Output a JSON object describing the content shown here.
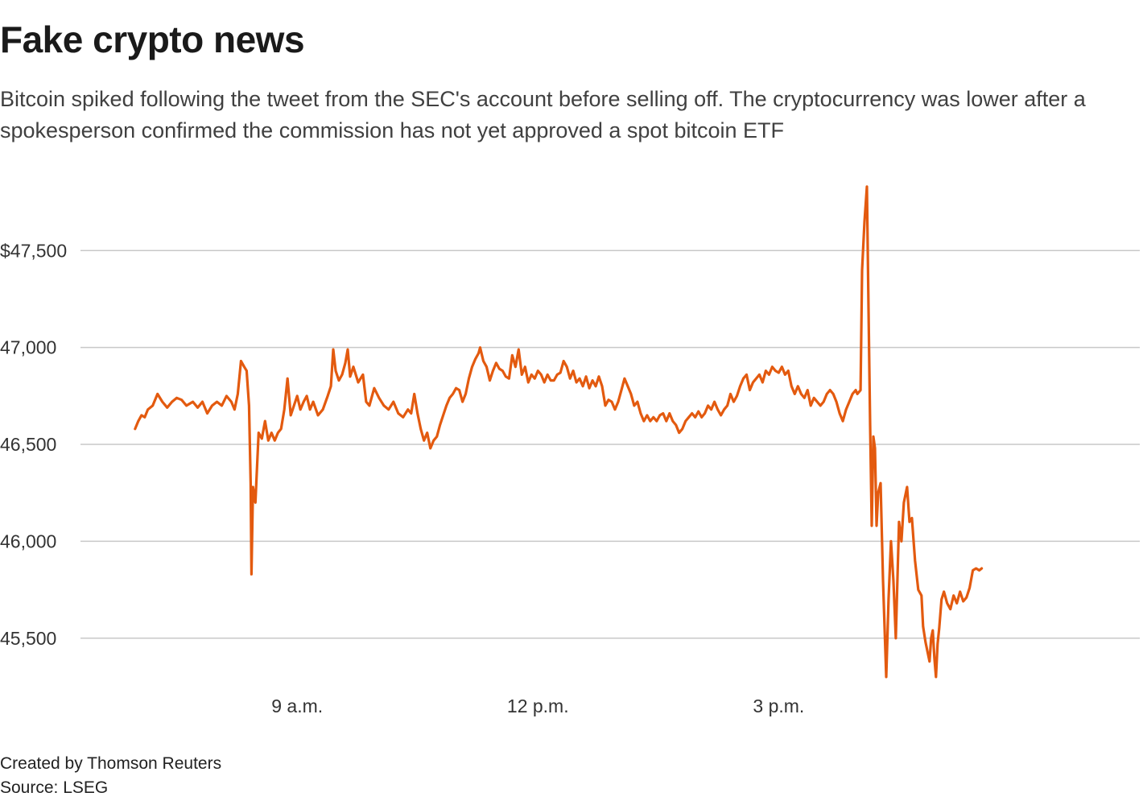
{
  "header": {
    "title": "Fake crypto news",
    "subtitle": "Bitcoin spiked following the tweet from the SEC's account before selling off. The cryptocurrency was lower after a spokesperson confirmed the commission has not yet approved a spot bitcoin ETF"
  },
  "footer": {
    "credit": "Created by Thomson Reuters",
    "source": "Source: LSEG"
  },
  "chart_data": {
    "type": "line",
    "title": "Fake crypto news",
    "xlabel": "",
    "ylabel": "",
    "line_color": "#e35a0f",
    "grid_color": "#c8c8c8",
    "grid": true,
    "legend": "none",
    "xlim": [
      6.3,
      19.5
    ],
    "ylim": [
      45200,
      47900
    ],
    "x_ticks": [
      {
        "value": 9,
        "label": "9 a.m."
      },
      {
        "value": 12,
        "label": "12 p.m."
      },
      {
        "value": 15,
        "label": "3 p.m."
      }
    ],
    "y_ticks": [
      {
        "value": 45500,
        "label": "45,500"
      },
      {
        "value": 46000,
        "label": "46,000"
      },
      {
        "value": 46500,
        "label": "46,500"
      },
      {
        "value": 47000,
        "label": "47,000"
      },
      {
        "value": 47500,
        "label": "$47,500"
      }
    ],
    "series": [
      {
        "values": [
          [
            6.98,
            46580
          ],
          [
            7.02,
            46620
          ],
          [
            7.06,
            46650
          ],
          [
            7.1,
            46640
          ],
          [
            7.14,
            46680
          ],
          [
            7.2,
            46700
          ],
          [
            7.26,
            46760
          ],
          [
            7.32,
            46720
          ],
          [
            7.38,
            46690
          ],
          [
            7.44,
            46720
          ],
          [
            7.5,
            46740
          ],
          [
            7.56,
            46730
          ],
          [
            7.62,
            46700
          ],
          [
            7.7,
            46720
          ],
          [
            7.76,
            46690
          ],
          [
            7.82,
            46720
          ],
          [
            7.88,
            46660
          ],
          [
            7.94,
            46700
          ],
          [
            8.0,
            46720
          ],
          [
            8.06,
            46700
          ],
          [
            8.12,
            46750
          ],
          [
            8.18,
            46720
          ],
          [
            8.22,
            46680
          ],
          [
            8.26,
            46760
          ],
          [
            8.3,
            46930
          ],
          [
            8.34,
            46900
          ],
          [
            8.37,
            46880
          ],
          [
            8.4,
            46700
          ],
          [
            8.42,
            46300
          ],
          [
            8.43,
            45830
          ],
          [
            8.45,
            46280
          ],
          [
            8.48,
            46200
          ],
          [
            8.52,
            46560
          ],
          [
            8.56,
            46530
          ],
          [
            8.6,
            46620
          ],
          [
            8.64,
            46520
          ],
          [
            8.68,
            46560
          ],
          [
            8.72,
            46520
          ],
          [
            8.76,
            46560
          ],
          [
            8.8,
            46580
          ],
          [
            8.84,
            46680
          ],
          [
            8.88,
            46840
          ],
          [
            8.92,
            46650
          ],
          [
            8.96,
            46700
          ],
          [
            9.0,
            46750
          ],
          [
            9.04,
            46680
          ],
          [
            9.08,
            46720
          ],
          [
            9.12,
            46750
          ],
          [
            9.16,
            46680
          ],
          [
            9.2,
            46720
          ],
          [
            9.26,
            46650
          ],
          [
            9.32,
            46680
          ],
          [
            9.38,
            46750
          ],
          [
            9.42,
            46800
          ],
          [
            9.45,
            46990
          ],
          [
            9.48,
            46880
          ],
          [
            9.52,
            46830
          ],
          [
            9.56,
            46860
          ],
          [
            9.6,
            46920
          ],
          [
            9.63,
            46990
          ],
          [
            9.66,
            46850
          ],
          [
            9.7,
            46900
          ],
          [
            9.76,
            46820
          ],
          [
            9.82,
            46860
          ],
          [
            9.86,
            46720
          ],
          [
            9.9,
            46700
          ],
          [
            9.96,
            46790
          ],
          [
            10.02,
            46740
          ],
          [
            10.08,
            46700
          ],
          [
            10.14,
            46680
          ],
          [
            10.2,
            46720
          ],
          [
            10.26,
            46660
          ],
          [
            10.32,
            46640
          ],
          [
            10.38,
            46680
          ],
          [
            10.42,
            46660
          ],
          [
            10.46,
            46760
          ],
          [
            10.5,
            46660
          ],
          [
            10.54,
            46580
          ],
          [
            10.58,
            46520
          ],
          [
            10.62,
            46560
          ],
          [
            10.66,
            46480
          ],
          [
            10.7,
            46520
          ],
          [
            10.74,
            46540
          ],
          [
            10.78,
            46600
          ],
          [
            10.82,
            46650
          ],
          [
            10.86,
            46700
          ],
          [
            10.9,
            46740
          ],
          [
            10.94,
            46760
          ],
          [
            10.98,
            46790
          ],
          [
            11.02,
            46780
          ],
          [
            11.06,
            46720
          ],
          [
            11.1,
            46760
          ],
          [
            11.14,
            46840
          ],
          [
            11.18,
            46900
          ],
          [
            11.22,
            46940
          ],
          [
            11.26,
            46970
          ],
          [
            11.28,
            47000
          ],
          [
            11.32,
            46930
          ],
          [
            11.36,
            46900
          ],
          [
            11.4,
            46830
          ],
          [
            11.44,
            46880
          ],
          [
            11.48,
            46920
          ],
          [
            11.52,
            46890
          ],
          [
            11.56,
            46880
          ],
          [
            11.6,
            46850
          ],
          [
            11.64,
            46840
          ],
          [
            11.68,
            46960
          ],
          [
            11.72,
            46900
          ],
          [
            11.76,
            46990
          ],
          [
            11.8,
            46860
          ],
          [
            11.84,
            46900
          ],
          [
            11.88,
            46820
          ],
          [
            11.92,
            46860
          ],
          [
            11.96,
            46840
          ],
          [
            12.0,
            46880
          ],
          [
            12.04,
            46860
          ],
          [
            12.08,
            46820
          ],
          [
            12.12,
            46860
          ],
          [
            12.16,
            46830
          ],
          [
            12.2,
            46830
          ],
          [
            12.24,
            46860
          ],
          [
            12.28,
            46870
          ],
          [
            12.32,
            46930
          ],
          [
            12.36,
            46900
          ],
          [
            12.4,
            46840
          ],
          [
            12.44,
            46880
          ],
          [
            12.48,
            46820
          ],
          [
            12.52,
            46840
          ],
          [
            12.56,
            46800
          ],
          [
            12.6,
            46850
          ],
          [
            12.64,
            46790
          ],
          [
            12.68,
            46830
          ],
          [
            12.72,
            46800
          ],
          [
            12.76,
            46850
          ],
          [
            12.8,
            46800
          ],
          [
            12.84,
            46700
          ],
          [
            12.88,
            46730
          ],
          [
            12.92,
            46720
          ],
          [
            12.96,
            46680
          ],
          [
            13.0,
            46720
          ],
          [
            13.04,
            46780
          ],
          [
            13.08,
            46840
          ],
          [
            13.12,
            46800
          ],
          [
            13.16,
            46760
          ],
          [
            13.2,
            46700
          ],
          [
            13.24,
            46720
          ],
          [
            13.28,
            46660
          ],
          [
            13.32,
            46620
          ],
          [
            13.36,
            46650
          ],
          [
            13.4,
            46620
          ],
          [
            13.44,
            46640
          ],
          [
            13.48,
            46620
          ],
          [
            13.52,
            46650
          ],
          [
            13.56,
            46660
          ],
          [
            13.6,
            46620
          ],
          [
            13.64,
            46660
          ],
          [
            13.68,
            46620
          ],
          [
            13.72,
            46600
          ],
          [
            13.76,
            46560
          ],
          [
            13.8,
            46580
          ],
          [
            13.84,
            46620
          ],
          [
            13.88,
            46640
          ],
          [
            13.92,
            46660
          ],
          [
            13.96,
            46640
          ],
          [
            14.0,
            46670
          ],
          [
            14.04,
            46640
          ],
          [
            14.08,
            46660
          ],
          [
            14.12,
            46700
          ],
          [
            14.16,
            46680
          ],
          [
            14.2,
            46720
          ],
          [
            14.24,
            46680
          ],
          [
            14.28,
            46650
          ],
          [
            14.32,
            46680
          ],
          [
            14.36,
            46700
          ],
          [
            14.4,
            46760
          ],
          [
            14.44,
            46720
          ],
          [
            14.48,
            46750
          ],
          [
            14.52,
            46800
          ],
          [
            14.56,
            46840
          ],
          [
            14.6,
            46860
          ],
          [
            14.64,
            46780
          ],
          [
            14.68,
            46820
          ],
          [
            14.72,
            46840
          ],
          [
            14.76,
            46860
          ],
          [
            14.8,
            46820
          ],
          [
            14.84,
            46880
          ],
          [
            14.88,
            46860
          ],
          [
            14.92,
            46900
          ],
          [
            14.96,
            46880
          ],
          [
            15.0,
            46870
          ],
          [
            15.04,
            46900
          ],
          [
            15.08,
            46860
          ],
          [
            15.12,
            46880
          ],
          [
            15.16,
            46800
          ],
          [
            15.2,
            46760
          ],
          [
            15.24,
            46800
          ],
          [
            15.28,
            46760
          ],
          [
            15.32,
            46740
          ],
          [
            15.36,
            46780
          ],
          [
            15.4,
            46700
          ],
          [
            15.44,
            46740
          ],
          [
            15.48,
            46720
          ],
          [
            15.52,
            46700
          ],
          [
            15.56,
            46720
          ],
          [
            15.6,
            46760
          ],
          [
            15.64,
            46780
          ],
          [
            15.68,
            46760
          ],
          [
            15.72,
            46720
          ],
          [
            15.76,
            46660
          ],
          [
            15.8,
            46620
          ],
          [
            15.84,
            46680
          ],
          [
            15.88,
            46720
          ],
          [
            15.92,
            46760
          ],
          [
            15.96,
            46780
          ],
          [
            15.98,
            46760
          ],
          [
            16.02,
            46780
          ],
          [
            16.04,
            47400
          ],
          [
            16.07,
            47650
          ],
          [
            16.1,
            47830
          ],
          [
            16.12,
            47200
          ],
          [
            16.14,
            46600
          ],
          [
            16.16,
            46080
          ],
          [
            16.18,
            46540
          ],
          [
            16.2,
            46480
          ],
          [
            16.22,
            46080
          ],
          [
            16.24,
            46250
          ],
          [
            16.27,
            46300
          ],
          [
            16.3,
            45800
          ],
          [
            16.34,
            45300
          ],
          [
            16.37,
            45700
          ],
          [
            16.4,
            46000
          ],
          [
            16.43,
            45800
          ],
          [
            16.46,
            45500
          ],
          [
            16.5,
            46100
          ],
          [
            16.53,
            46000
          ],
          [
            16.56,
            46200
          ],
          [
            16.6,
            46280
          ],
          [
            16.63,
            46100
          ],
          [
            16.66,
            46120
          ],
          [
            16.7,
            45900
          ],
          [
            16.74,
            45750
          ],
          [
            16.78,
            45720
          ],
          [
            16.8,
            45560
          ],
          [
            16.83,
            45480
          ],
          [
            16.86,
            45420
          ],
          [
            16.88,
            45380
          ],
          [
            16.9,
            45500
          ],
          [
            16.92,
            45540
          ],
          [
            16.94,
            45400
          ],
          [
            16.96,
            45300
          ],
          [
            16.98,
            45470
          ],
          [
            17.0,
            45550
          ],
          [
            17.03,
            45700
          ],
          [
            17.06,
            45740
          ],
          [
            17.1,
            45680
          ],
          [
            17.14,
            45650
          ],
          [
            17.18,
            45720
          ],
          [
            17.22,
            45680
          ],
          [
            17.26,
            45740
          ],
          [
            17.3,
            45690
          ],
          [
            17.34,
            45710
          ],
          [
            17.38,
            45760
          ],
          [
            17.42,
            45850
          ],
          [
            17.46,
            45860
          ],
          [
            17.5,
            45850
          ],
          [
            17.53,
            45860
          ]
        ]
      }
    ]
  }
}
